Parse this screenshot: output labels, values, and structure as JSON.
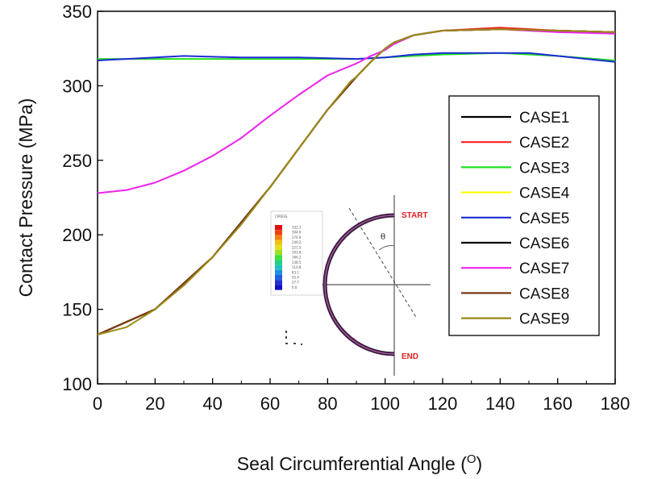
{
  "chart_data": {
    "type": "line",
    "title": "",
    "xlabel": "Seal Circumferential Angle (",
    "xlabel_unit": "O",
    "xlabel_close": ")",
    "ylabel": "Contact Pressure (MPa)",
    "xlim": [
      0,
      180
    ],
    "ylim": [
      100,
      350
    ],
    "xticks": [
      0,
      20,
      40,
      60,
      80,
      100,
      120,
      140,
      160,
      180
    ],
    "yticks": [
      100,
      150,
      200,
      250,
      300,
      350
    ],
    "grid": false,
    "legend_position": "right",
    "series": [
      {
        "name": "CASE1",
        "color": "#000000",
        "x": [
          0,
          20,
          40,
          60,
          80,
          90,
          95,
          100,
          103,
          110,
          120,
          140,
          160,
          180
        ],
        "y": [
          133,
          150,
          185,
          232,
          284,
          306,
          316,
          325,
          329,
          334,
          337,
          338,
          337,
          336
        ]
      },
      {
        "name": "CASE2",
        "color": "#ff2020",
        "x": [
          0,
          20,
          40,
          60,
          80,
          90,
          95,
          100,
          103,
          110,
          120,
          140,
          160,
          180
        ],
        "y": [
          133,
          150,
          185,
          232,
          284,
          306,
          316,
          325,
          329,
          334,
          337,
          339,
          337,
          336
        ]
      },
      {
        "name": "CASE3",
        "color": "#20e020",
        "x": [
          0,
          20,
          40,
          60,
          80,
          90,
          100,
          110,
          120,
          140,
          160,
          180
        ],
        "y": [
          318,
          318,
          318,
          318,
          318,
          318,
          319,
          320,
          321,
          322,
          320,
          317
        ]
      },
      {
        "name": "CASE4",
        "color": "#ffff00",
        "x": [
          0,
          20,
          40,
          60,
          80,
          90,
          95,
          100,
          103,
          110,
          120,
          140,
          160,
          180
        ],
        "y": [
          133,
          150,
          185,
          232,
          284,
          306,
          316,
          325,
          329,
          334,
          337,
          338,
          337,
          336
        ]
      },
      {
        "name": "CASE5",
        "color": "#1e2bd6",
        "x": [
          0,
          10,
          30,
          50,
          70,
          90,
          100,
          110,
          120,
          140,
          150,
          160,
          170,
          180
        ],
        "y": [
          317,
          318,
          320,
          319,
          319,
          318,
          319,
          321,
          322,
          322,
          322,
          320,
          318,
          316
        ]
      },
      {
        "name": "CASE6",
        "color": "#000000",
        "x": [
          0,
          20,
          40,
          60,
          80,
          90,
          95,
          100,
          103,
          110,
          120,
          140,
          160,
          180
        ],
        "y": [
          133,
          150,
          185,
          232,
          284,
          306,
          316,
          325,
          329,
          334,
          337,
          338,
          337,
          336
        ]
      },
      {
        "name": "CASE7",
        "color": "#ee22ee",
        "x": [
          0,
          10,
          20,
          30,
          40,
          50,
          60,
          70,
          80,
          90,
          95,
          100,
          103,
          110,
          120,
          140,
          160,
          180
        ],
        "y": [
          228,
          230,
          235,
          243,
          253,
          265,
          280,
          294,
          307,
          315,
          320,
          324,
          328,
          334,
          337,
          338,
          336,
          335
        ]
      },
      {
        "name": "CASE8",
        "color": "#7a3a14",
        "x": [
          0,
          20,
          40,
          60,
          80,
          90,
          95,
          100,
          103,
          110,
          120,
          140,
          160,
          180
        ],
        "y": [
          133,
          150,
          185,
          232,
          284,
          306,
          316,
          325,
          329,
          334,
          337,
          338,
          337,
          336
        ]
      },
      {
        "name": "CASE9",
        "color": "#9a8a1a",
        "x": [
          0,
          10,
          20,
          30,
          40,
          50,
          60,
          70,
          80,
          88,
          90,
          95,
          100,
          103,
          110,
          120,
          140,
          160,
          180
        ],
        "y": [
          133,
          138,
          150,
          166,
          185,
          207,
          232,
          258,
          284,
          303,
          306,
          316,
          325,
          329,
          334,
          337,
          338,
          337,
          336
        ]
      }
    ]
  },
  "inset": {
    "start_label": "START",
    "end_label": "END",
    "theta_label": "θ",
    "contour_title": "CPRESS",
    "contour_values": [
      "332.3",
      "304.6",
      "276.9",
      "249.2",
      "221.5",
      "193.8",
      "166.2",
      "138.5",
      "110.8",
      "83.1",
      "55.4",
      "27.7",
      "0.0"
    ],
    "contour_colors": [
      "#e01010",
      "#f04010",
      "#f08010",
      "#f0c010",
      "#e0e020",
      "#a0e020",
      "#40e040",
      "#20d080",
      "#20c0c0",
      "#2090e0",
      "#2060e0",
      "#2030d0",
      "#1010c0"
    ]
  }
}
